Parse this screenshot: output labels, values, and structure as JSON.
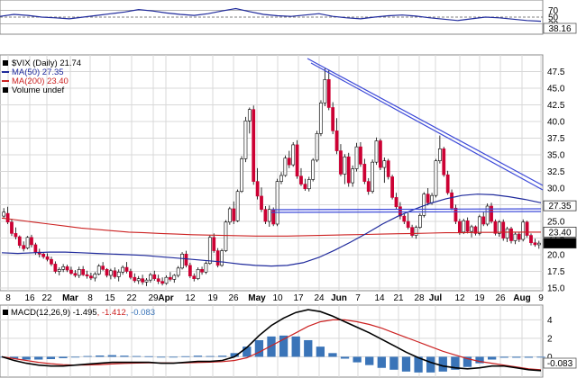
{
  "chart_data": {
    "type": "candlestick",
    "colors": {
      "up": "#ffffff",
      "down": "#cc0033",
      "wick": "#000000",
      "ma50": "#1f2a9c",
      "ma200": "#cc2222",
      "trendline": "#3b48d8",
      "macd": "#000000",
      "signal": "#cc2222",
      "hist": "#3a74b8"
    },
    "rsi": {
      "ticks": [
        "70",
        "50",
        "30"
      ],
      "value_label": "38.16",
      "values": [
        52,
        58,
        55,
        50,
        48,
        45,
        50,
        55,
        60,
        65,
        72,
        68,
        62,
        58,
        55,
        60,
        68,
        75,
        66,
        58,
        54,
        52,
        56,
        60,
        52,
        48,
        45,
        50,
        54,
        56,
        53,
        48,
        44,
        40,
        45,
        50,
        48,
        44,
        40,
        38
      ]
    },
    "main": {
      "legend": [
        {
          "text": "$VIX (Daily) 21.74",
          "color": "#000000",
          "marker": "square"
        },
        {
          "text": "MA(50) 27.35",
          "color": "#1f2a9c",
          "marker": "line"
        },
        {
          "text": "MA(200) 23.40",
          "color": "#cc2222",
          "marker": "line"
        },
        {
          "text": "Volume undef",
          "color": "#000000",
          "marker": "square"
        }
      ],
      "y_ticks": [
        "47.5",
        "45.0",
        "42.5",
        "40.0",
        "37.5",
        "35.0",
        "32.5",
        "30.0",
        "27.5",
        "25.0",
        "22.5",
        "20.0",
        "17.5",
        "15.0"
      ],
      "y_range": [
        14.6,
        50.0
      ],
      "price_boxes": [
        {
          "text": "27.35",
          "value": 27.35,
          "bg": "#ffffff",
          "fg": "#000000"
        },
        {
          "text": "23.40",
          "value": 23.4,
          "bg": "#ffffff",
          "fg": "#000000"
        },
        {
          "text": "21.74",
          "value": 21.74,
          "bg": "#000000",
          "fg": "#ffffff"
        }
      ],
      "ma50": [
        20.3,
        20.2,
        20.3,
        20.4,
        20.4,
        20.3,
        20.2,
        20.1,
        20.0,
        19.9,
        19.7,
        19.5,
        19.3,
        19.1,
        18.9,
        18.6,
        18.4,
        18.3,
        18.4,
        18.8,
        19.6,
        20.7,
        21.9,
        23.2,
        24.6,
        25.8,
        26.8,
        27.7,
        28.4,
        28.9,
        29.1,
        29.0,
        28.7,
        28.3,
        27.8
      ],
      "ma200": [
        25.5,
        25.2,
        24.9,
        24.6,
        24.3,
        24.0,
        23.8,
        23.6,
        23.4,
        23.3,
        23.2,
        23.1,
        23.0,
        22.95,
        22.9,
        22.85,
        22.8,
        22.8,
        22.8,
        22.85,
        22.9,
        22.95,
        23.0,
        23.05,
        23.1,
        23.15,
        23.2,
        23.25,
        23.3,
        23.3,
        23.35,
        23.35,
        23.4,
        23.4,
        23.4
      ],
      "candles": [
        [
          25.8,
          27.0,
          25.4,
          26.4
        ],
        [
          26.2,
          27.2,
          24.6,
          24.9
        ],
        [
          24.9,
          25.4,
          22.8,
          23.2
        ],
        [
          23.2,
          24.1,
          22.3,
          22.7
        ],
        [
          22.7,
          22.9,
          21.0,
          21.4
        ],
        [
          21.4,
          22.0,
          20.5,
          20.9
        ],
        [
          21.0,
          22.8,
          20.8,
          22.6
        ],
        [
          22.6,
          23.0,
          21.1,
          21.5
        ],
        [
          21.5,
          21.8,
          20.0,
          20.4
        ],
        [
          20.4,
          20.9,
          19.6,
          20.1
        ],
        [
          20.1,
          20.4,
          19.4,
          19.7
        ],
        [
          19.7,
          20.2,
          19.0,
          19.3
        ],
        [
          19.3,
          19.7,
          18.3,
          18.6
        ],
        [
          18.6,
          19.0,
          17.2,
          17.5
        ],
        [
          17.5,
          18.1,
          16.9,
          17.8
        ],
        [
          17.8,
          18.6,
          17.4,
          18.2
        ],
        [
          18.2,
          18.5,
          17.4,
          17.7
        ],
        [
          17.7,
          18.2,
          17.0,
          17.2
        ],
        [
          17.2,
          17.7,
          16.6,
          16.9
        ],
        [
          16.9,
          18.2,
          16.5,
          17.8
        ],
        [
          17.8,
          18.3,
          16.8,
          17.0
        ],
        [
          17.0,
          17.6,
          16.4,
          16.8
        ],
        [
          16.8,
          17.3,
          16.2,
          16.5
        ],
        [
          16.5,
          17.4,
          16.0,
          17.1
        ],
        [
          17.1,
          18.6,
          16.9,
          18.3
        ],
        [
          18.3,
          18.9,
          17.6,
          17.8
        ],
        [
          17.8,
          18.0,
          16.6,
          16.9
        ],
        [
          16.9,
          17.9,
          16.3,
          17.6
        ],
        [
          17.6,
          18.1,
          16.4,
          16.7
        ],
        [
          16.7,
          17.8,
          16.0,
          17.4
        ],
        [
          17.4,
          18.4,
          17.0,
          18.1
        ],
        [
          18.1,
          18.9,
          17.2,
          17.5
        ],
        [
          17.5,
          17.9,
          16.3,
          16.6
        ],
        [
          16.6,
          17.2,
          15.8,
          16.1
        ],
        [
          16.1,
          16.8,
          15.6,
          16.4
        ],
        [
          16.4,
          17.0,
          15.5,
          15.9
        ],
        [
          15.9,
          16.5,
          15.3,
          16.2
        ],
        [
          16.2,
          17.3,
          15.8,
          17.0
        ],
        [
          17.0,
          17.6,
          16.1,
          16.4
        ],
        [
          16.4,
          17.0,
          15.6,
          16.0
        ],
        [
          16.0,
          16.6,
          15.4,
          15.7
        ],
        [
          15.7,
          16.9,
          15.5,
          16.6
        ],
        [
          16.6,
          17.4,
          16.0,
          16.3
        ],
        [
          16.3,
          17.1,
          15.8,
          16.9
        ],
        [
          16.9,
          18.3,
          16.6,
          18.0
        ],
        [
          18.0,
          20.4,
          17.8,
          20.1
        ],
        [
          20.1,
          20.6,
          18.1,
          18.4
        ],
        [
          18.4,
          18.8,
          16.5,
          16.8
        ],
        [
          16.8,
          17.2,
          16.0,
          16.4
        ],
        [
          16.4,
          18.1,
          16.2,
          17.8
        ],
        [
          17.8,
          18.2,
          17.0,
          17.4
        ],
        [
          17.4,
          19.0,
          17.1,
          18.7
        ],
        [
          18.7,
          22.9,
          18.5,
          22.6
        ],
        [
          22.6,
          23.2,
          20.3,
          20.6
        ],
        [
          20.6,
          21.0,
          18.1,
          18.4
        ],
        [
          18.4,
          20.9,
          18.2,
          20.6
        ],
        [
          20.6,
          25.2,
          20.4,
          24.9
        ],
        [
          24.9,
          27.2,
          24.5,
          26.9
        ],
        [
          26.9,
          28.0,
          24.6,
          25.1
        ],
        [
          25.1,
          29.8,
          24.9,
          29.5
        ],
        [
          29.5,
          34.8,
          29.3,
          34.4
        ],
        [
          34.4,
          40.7,
          33.9,
          40.1
        ],
        [
          40.1,
          42.1,
          38.2,
          41.8
        ],
        [
          41.8,
          42.4,
          30.5,
          31.0
        ],
        [
          31.0,
          33.0,
          28.3,
          28.8
        ],
        [
          28.8,
          30.1,
          26.4,
          26.8
        ],
        [
          26.8,
          27.3,
          24.6,
          25.0
        ],
        [
          25.0,
          27.4,
          24.2,
          26.8
        ],
        [
          26.8,
          27.1,
          24.3,
          24.6
        ],
        [
          24.6,
          31.4,
          24.3,
          31.0
        ],
        [
          31.0,
          32.4,
          30.6,
          31.9
        ],
        [
          31.9,
          34.9,
          31.7,
          34.5
        ],
        [
          34.5,
          35.6,
          33.0,
          33.5
        ],
        [
          33.5,
          36.9,
          33.2,
          36.5
        ],
        [
          36.5,
          37.2,
          31.4,
          31.8
        ],
        [
          31.8,
          33.0,
          30.3,
          30.6
        ],
        [
          30.6,
          31.4,
          29.6,
          29.9
        ],
        [
          29.9,
          31.7,
          29.5,
          31.3
        ],
        [
          31.3,
          34.5,
          31.0,
          34.2
        ],
        [
          34.2,
          38.6,
          33.9,
          38.2
        ],
        [
          38.2,
          43.2,
          37.8,
          42.8
        ],
        [
          42.8,
          48.0,
          42.3,
          46.3
        ],
        [
          46.3,
          47.8,
          41.7,
          42.1
        ],
        [
          42.1,
          42.9,
          38.1,
          38.6
        ],
        [
          38.6,
          40.5,
          35.1,
          35.6
        ],
        [
          35.6,
          36.6,
          31.8,
          32.1
        ],
        [
          32.1,
          35.1,
          30.6,
          34.7
        ],
        [
          34.7,
          35.3,
          30.2,
          30.8
        ],
        [
          30.8,
          33.4,
          30.2,
          32.9
        ],
        [
          32.9,
          36.8,
          32.5,
          36.2
        ],
        [
          36.2,
          36.9,
          33.2,
          33.6
        ],
        [
          33.6,
          34.4,
          30.6,
          31.0
        ],
        [
          31.0,
          31.5,
          29.0,
          29.5
        ],
        [
          29.5,
          34.3,
          29.2,
          33.9
        ],
        [
          33.9,
          37.6,
          33.5,
          37.1
        ],
        [
          37.1,
          37.4,
          32.7,
          33.1
        ],
        [
          33.1,
          34.6,
          30.8,
          34.1
        ],
        [
          34.1,
          34.4,
          31.3,
          31.7
        ],
        [
          31.7,
          32.0,
          28.3,
          28.6
        ],
        [
          28.6,
          29.3,
          26.8,
          27.2
        ],
        [
          27.2,
          27.9,
          25.3,
          25.8
        ],
        [
          25.8,
          26.2,
          24.6,
          25.0
        ],
        [
          25.0,
          26.3,
          23.8,
          24.1
        ],
        [
          24.1,
          24.5,
          22.6,
          22.9
        ],
        [
          22.9,
          24.4,
          22.4,
          24.1
        ],
        [
          24.1,
          26.2,
          23.9,
          25.9
        ],
        [
          25.9,
          29.4,
          25.6,
          29.1
        ],
        [
          29.1,
          30.0,
          27.4,
          27.8
        ],
        [
          27.8,
          29.3,
          27.5,
          28.9
        ],
        [
          28.9,
          34.4,
          28.6,
          34.1
        ],
        [
          34.1,
          37.9,
          33.7,
          35.9
        ],
        [
          35.9,
          36.2,
          31.7,
          32.0
        ],
        [
          32.0,
          32.6,
          29.0,
          29.3
        ],
        [
          29.3,
          29.8,
          26.7,
          27.0
        ],
        [
          27.0,
          27.5,
          24.6,
          25.0
        ],
        [
          25.0,
          25.4,
          23.0,
          23.4
        ],
        [
          23.4,
          25.4,
          23.1,
          25.1
        ],
        [
          25.1,
          25.6,
          23.2,
          23.5
        ],
        [
          23.5,
          24.5,
          22.6,
          24.2
        ],
        [
          24.2,
          24.4,
          22.9,
          23.2
        ],
        [
          23.2,
          26.0,
          22.9,
          25.7
        ],
        [
          25.7,
          26.4,
          24.3,
          24.6
        ],
        [
          24.6,
          27.7,
          24.3,
          27.3
        ],
        [
          27.3,
          27.8,
          24.7,
          25.0
        ],
        [
          25.0,
          25.3,
          22.9,
          23.2
        ],
        [
          23.2,
          25.2,
          22.7,
          24.9
        ],
        [
          24.9,
          25.3,
          22.1,
          22.5
        ],
        [
          22.5,
          24.2,
          21.9,
          23.9
        ],
        [
          23.9,
          24.2,
          21.7,
          22.1
        ],
        [
          22.1,
          23.4,
          21.6,
          23.1
        ],
        [
          23.1,
          23.4,
          21.9,
          22.3
        ],
        [
          22.3,
          25.3,
          22.0,
          24.9
        ],
        [
          24.9,
          25.1,
          22.6,
          22.9
        ],
        [
          22.9,
          23.2,
          21.4,
          21.8
        ],
        [
          21.8,
          22.4,
          21.2,
          21.5
        ],
        [
          21.5,
          22.1,
          20.9,
          21.74
        ]
      ]
    },
    "x_ticks": [
      {
        "label": "8",
        "pos": 9
      },
      {
        "label": "16",
        "pos": 33
      },
      {
        "label": "22",
        "pos": 52
      },
      {
        "label": "Mar",
        "pos": 78
      },
      {
        "label": "8",
        "pos": 100
      },
      {
        "label": "15",
        "pos": 122
      },
      {
        "label": "22",
        "pos": 146
      },
      {
        "label": "29",
        "pos": 170
      },
      {
        "label": "Apr",
        "pos": 184
      },
      {
        "label": "12",
        "pos": 211
      },
      {
        "label": "19",
        "pos": 236
      },
      {
        "label": "26",
        "pos": 259
      },
      {
        "label": "May",
        "pos": 285
      },
      {
        "label": "10",
        "pos": 308
      },
      {
        "label": "17",
        "pos": 331
      },
      {
        "label": "24",
        "pos": 354
      },
      {
        "label": "Jun",
        "pos": 376
      },
      {
        "label": "7",
        "pos": 397
      },
      {
        "label": "14",
        "pos": 421
      },
      {
        "label": "21",
        "pos": 442
      },
      {
        "label": "28",
        "pos": 465
      },
      {
        "label": "Jul",
        "pos": 483
      },
      {
        "label": "12",
        "pos": 510
      },
      {
        "label": "19",
        "pos": 532
      },
      {
        "label": "26",
        "pos": 555
      },
      {
        "label": "Aug",
        "pos": 579
      },
      {
        "label": "9",
        "pos": 600
      }
    ],
    "macd": {
      "legend": [
        {
          "text": "MACD(12,26,9)",
          "color": "#000000",
          "marker": "square"
        },
        {
          "text": "-1.495",
          "color": "#000000"
        },
        {
          "text": ", -1.412",
          "color": "#cc2222"
        },
        {
          "text": ", -0.083",
          "color": "#3a74b8"
        }
      ],
      "y_ticks": [
        "4",
        "2",
        "0"
      ],
      "value_label": "-0.083",
      "y_range": [
        -2.2,
        5.6
      ],
      "macd_line": [
        0.0,
        -0.4,
        -0.7,
        -0.9,
        -1.0,
        -1.0,
        -0.9,
        -0.8,
        -0.7,
        -0.6,
        -0.6,
        -0.6,
        -0.6,
        -0.7,
        -0.7,
        -0.6,
        -0.5,
        -0.5,
        -0.4,
        0.0,
        1.0,
        2.3,
        3.4,
        4.2,
        4.8,
        5.1,
        4.9,
        4.4,
        3.8,
        3.2,
        2.6,
        1.9,
        1.2,
        0.5,
        -0.1,
        -0.6,
        -1.0,
        -1.2,
        -1.3,
        -1.2,
        -1.0,
        -1.0,
        -1.2,
        -1.4,
        -1.5
      ],
      "signal_line": [
        0.0,
        -0.2,
        -0.4,
        -0.6,
        -0.75,
        -0.85,
        -0.9,
        -0.88,
        -0.84,
        -0.78,
        -0.72,
        -0.68,
        -0.66,
        -0.66,
        -0.67,
        -0.66,
        -0.62,
        -0.58,
        -0.52,
        -0.4,
        -0.1,
        0.5,
        1.2,
        1.9,
        2.6,
        3.3,
        3.8,
        4.0,
        4.0,
        3.8,
        3.5,
        3.1,
        2.6,
        2.1,
        1.6,
        1.1,
        0.6,
        0.2,
        -0.2,
        -0.5,
        -0.7,
        -0.9,
        -1.1,
        -1.3,
        -1.41
      ],
      "histogram": [
        0.0,
        -0.2,
        -0.3,
        -0.3,
        -0.25,
        -0.15,
        0.0,
        0.08,
        0.14,
        0.18,
        0.12,
        0.08,
        0.06,
        -0.04,
        -0.03,
        0.06,
        0.12,
        0.08,
        0.12,
        0.4,
        1.1,
        1.8,
        2.2,
        2.3,
        2.2,
        1.8,
        1.1,
        0.4,
        -0.2,
        -0.6,
        -0.9,
        -1.2,
        -1.4,
        -1.6,
        -1.7,
        -1.7,
        -1.6,
        -1.4,
        -1.1,
        -0.7,
        -0.3,
        -0.1,
        -0.1,
        -0.1,
        -0.083
      ]
    }
  }
}
